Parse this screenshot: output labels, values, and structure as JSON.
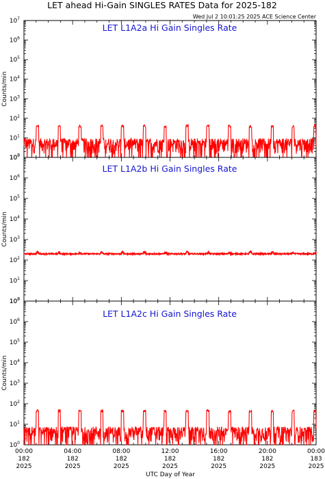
{
  "title": "LET ahead Hi-Gain SINGLES RATES Data for 2025-182",
  "subtitle": "Wed Jul  2 10:01:25 2025 ACE Science Center",
  "xlabel": "UTC Day of Year",
  "ylabel": "Counts/min",
  "colors": {
    "series": "#ff0000",
    "panel_title": "#1515d0",
    "axes": "#000000"
  },
  "chart_data": [
    {
      "type": "line",
      "title": "LET L1A2a Hi Gain Singles Rate",
      "ylabel": "Counts/min",
      "yscale": "log",
      "ylim": [
        1,
        10000000
      ],
      "xlim": [
        0,
        24
      ],
      "baseline_value": 5,
      "spike_value": 40,
      "spike_hours": [
        1.1,
        2.9,
        4.6,
        6.4,
        8.1,
        9.9,
        11.6,
        13.4,
        15.1,
        16.9,
        18.6,
        20.4,
        22.1,
        23.9
      ],
      "series": [
        {
          "values_description": "",
          "color": "#ff0000"
        }
      ]
    },
    {
      "type": "line",
      "title": "LET L1A2b Hi Gain Singles Rate",
      "ylabel": "Counts/min",
      "yscale": "log",
      "ylim": [
        1,
        10000000
      ],
      "xlim": [
        0,
        24
      ],
      "baseline_value": 200,
      "spike_value": 230,
      "spike_hours": [
        1.1,
        2.9,
        4.6,
        6.4,
        8.1,
        9.9,
        11.6,
        13.4,
        15.1,
        16.9,
        18.6,
        20.4,
        22.1,
        23.9
      ],
      "series": [
        {
          "color": "#ff0000"
        }
      ]
    },
    {
      "type": "line",
      "title": "LET L1A2c Hi Gain Singles Rate",
      "ylabel": "Counts/min",
      "yscale": "log",
      "ylim": [
        1,
        10000000
      ],
      "xlim": [
        0,
        24
      ],
      "baseline_value": 4,
      "spike_value": 45,
      "spike_hours": [
        1.1,
        2.9,
        4.6,
        6.4,
        8.1,
        9.9,
        11.6,
        13.4,
        15.1,
        16.9,
        18.6,
        20.4,
        22.1,
        23.9
      ],
      "series": [
        {
          "color": "#ff0000"
        }
      ]
    }
  ],
  "yticks": [
    {
      "base": "10",
      "exp": "0"
    },
    {
      "base": "10",
      "exp": "1"
    },
    {
      "base": "10",
      "exp": "2"
    },
    {
      "base": "10",
      "exp": "3"
    },
    {
      "base": "10",
      "exp": "4"
    },
    {
      "base": "10",
      "exp": "5"
    },
    {
      "base": "10",
      "exp": "6"
    },
    {
      "base": "10",
      "exp": "7"
    }
  ],
  "xticks": [
    {
      "time": "00:00",
      "day": "182",
      "year": "2025"
    },
    {
      "time": "04:00",
      "day": "182",
      "year": "2025"
    },
    {
      "time": "08:00",
      "day": "182",
      "year": "2025"
    },
    {
      "time": "12:00",
      "day": "182",
      "year": "2025"
    },
    {
      "time": "16:00",
      "day": "182",
      "year": "2025"
    },
    {
      "time": "20:00",
      "day": "182",
      "year": "2025"
    },
    {
      "time": "00:00",
      "day": "183",
      "year": "2025"
    }
  ]
}
